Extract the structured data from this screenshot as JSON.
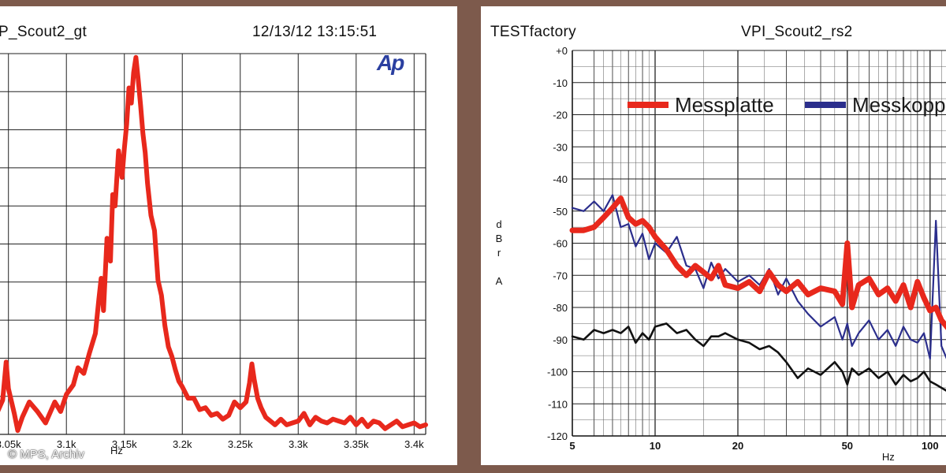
{
  "left": {
    "title": "P_Scout2_gt",
    "timestamp": "12/13/12 13:15:51",
    "logo": "Ap",
    "xlabel": "Hz"
  },
  "right": {
    "brand": "TESTfactory",
    "title": "VPI_Scout2_rs2",
    "ylabel_letters": [
      "d",
      "B",
      "r",
      "",
      "A"
    ],
    "xlabel": "Hz"
  },
  "credit": "© MPS, Archiv",
  "colors": {
    "red": "#e8281c",
    "blue": "#2b2e8c",
    "black": "#111111",
    "frame": "#7d5a4c"
  },
  "chart_data": [
    {
      "type": "line",
      "title": "P_Scout2_gt",
      "xlabel": "Hz",
      "ylabel": "",
      "xlim": [
        3040,
        3410
      ],
      "ylim": [
        0,
        10
      ],
      "x_ticks": [
        3050,
        3100,
        3150,
        3200,
        3250,
        3300,
        3350,
        3400
      ],
      "x_tick_labels": [
        "3.05k",
        "3.1k",
        "3.15k",
        "3.2k",
        "3.25k",
        "3.3k",
        "3.35k",
        "3.4k"
      ],
      "grid": true,
      "series": [
        {
          "color": "#e8281c",
          "x": [
            3040,
            3045,
            3048,
            3050,
            3055,
            3058,
            3062,
            3068,
            3075,
            3082,
            3090,
            3095,
            3100,
            3106,
            3110,
            3115,
            3120,
            3125,
            3128,
            3130,
            3132,
            3135,
            3138,
            3140,
            3142,
            3145,
            3148,
            3150,
            3152,
            3154,
            3156,
            3158,
            3160,
            3162,
            3164,
            3166,
            3168,
            3170,
            3173,
            3176,
            3179,
            3182,
            3185,
            3188,
            3191,
            3194,
            3197,
            3200,
            3205,
            3210,
            3215,
            3220,
            3225,
            3230,
            3235,
            3240,
            3245,
            3250,
            3255,
            3258,
            3260,
            3262,
            3265,
            3268,
            3272,
            3276,
            3280,
            3285,
            3290,
            3295,
            3300,
            3305,
            3310,
            3315,
            3320,
            3325,
            3330,
            3335,
            3340,
            3345,
            3350,
            3355,
            3360,
            3365,
            3370,
            3375,
            3380,
            3385,
            3390,
            3395,
            3400,
            3405,
            3410
          ],
          "y": [
            0.55,
            0.9,
            1.9,
            1.2,
            0.55,
            0.1,
            0.45,
            0.85,
            0.6,
            0.3,
            0.85,
            0.6,
            1.05,
            1.3,
            1.75,
            1.6,
            2.15,
            2.65,
            3.55,
            4.1,
            3.25,
            5.15,
            4.55,
            6.3,
            6.0,
            7.45,
            6.75,
            7.5,
            8.15,
            9.1,
            8.7,
            9.5,
            9.9,
            9.3,
            8.65,
            7.9,
            7.4,
            6.6,
            5.75,
            5.35,
            4.05,
            3.65,
            2.85,
            2.3,
            2.05,
            1.7,
            1.4,
            1.25,
            0.95,
            0.95,
            0.65,
            0.7,
            0.5,
            0.55,
            0.4,
            0.5,
            0.85,
            0.7,
            0.85,
            1.35,
            1.85,
            1.45,
            0.95,
            0.7,
            0.45,
            0.35,
            0.25,
            0.4,
            0.25,
            0.3,
            0.35,
            0.55,
            0.25,
            0.45,
            0.35,
            0.3,
            0.4,
            0.35,
            0.3,
            0.45,
            0.25,
            0.4,
            0.2,
            0.35,
            0.3,
            0.15,
            0.25,
            0.35,
            0.2,
            0.25,
            0.3,
            0.2,
            0.25
          ]
        }
      ]
    },
    {
      "type": "line",
      "title": "VPI_Scout2_rs2",
      "xlabel": "Hz",
      "ylabel": "dBr A",
      "x_scale": "log",
      "xlim": [
        5,
        120
      ],
      "ylim": [
        -120,
        0
      ],
      "x_ticks": [
        5,
        10,
        20,
        50,
        100
      ],
      "x_tick_labels": [
        "5",
        "10",
        "20",
        "50",
        "100"
      ],
      "y_ticks": [
        0,
        -10,
        -20,
        -30,
        -40,
        -50,
        -60,
        -70,
        -80,
        -90,
        -100,
        -110,
        -120
      ],
      "y_tick_labels": [
        "+0",
        "-10",
        "-20",
        "-30",
        "-40",
        "-50",
        "-60",
        "-70",
        "-80",
        "-90",
        "-100",
        "-110",
        "-120"
      ],
      "grid": true,
      "legend": "top",
      "series": [
        {
          "name": "Messplatte",
          "color": "#e8281c",
          "x": [
            5,
            5.5,
            6,
            6.5,
            7,
            7.5,
            8,
            8.5,
            9,
            9.5,
            10,
            11,
            12,
            13,
            14,
            15,
            16,
            17,
            18,
            20,
            22,
            24,
            26,
            28,
            30,
            33,
            36,
            40,
            45,
            48,
            50,
            52,
            55,
            60,
            65,
            70,
            75,
            80,
            85,
            90,
            95,
            100,
            105,
            110,
            115,
            120
          ],
          "y": [
            -56,
            -56,
            -55,
            -52,
            -49,
            -46,
            -52,
            -54,
            -53,
            -55,
            -58,
            -62,
            -67,
            -70,
            -67,
            -69,
            -71,
            -67,
            -73,
            -74,
            -72,
            -75,
            -69,
            -73,
            -75,
            -72,
            -76,
            -74,
            -75,
            -79,
            -60,
            -80,
            -73,
            -71,
            -76,
            -74,
            -78,
            -73,
            -80,
            -72,
            -77,
            -81,
            -80,
            -84,
            -86,
            -88
          ]
        },
        {
          "name": "Messkoppler",
          "color": "#2b2e8c",
          "x": [
            5,
            5.5,
            6,
            6.5,
            7,
            7.5,
            8,
            8.5,
            9,
            9.5,
            10,
            11,
            12,
            13,
            14,
            15,
            16,
            17,
            18,
            20,
            22,
            24,
            26,
            28,
            30,
            33,
            36,
            40,
            45,
            48,
            50,
            52,
            55,
            60,
            65,
            70,
            75,
            80,
            85,
            90,
            95,
            100,
            105,
            110,
            115,
            120
          ],
          "y": [
            -49,
            -50,
            -47,
            -50,
            -45,
            -55,
            -54,
            -61,
            -57,
            -65,
            -60,
            -63,
            -58,
            -67,
            -68,
            -74,
            -66,
            -71,
            -68,
            -72,
            -70,
            -73,
            -68,
            -76,
            -71,
            -78,
            -82,
            -86,
            -83,
            -90,
            -85,
            -92,
            -88,
            -84,
            -90,
            -87,
            -92,
            -86,
            -90,
            -91,
            -88,
            -96,
            -53,
            -92,
            -96,
            -90
          ]
        },
        {
          "name": "",
          "color": "#111111",
          "x": [
            5,
            5.5,
            6,
            6.5,
            7,
            7.5,
            8,
            8.5,
            9,
            9.5,
            10,
            11,
            12,
            13,
            14,
            15,
            16,
            17,
            18,
            20,
            22,
            24,
            26,
            28,
            30,
            33,
            36,
            40,
            45,
            48,
            50,
            52,
            55,
            60,
            65,
            70,
            75,
            80,
            85,
            90,
            95,
            100,
            105,
            110,
            115,
            120
          ],
          "y": [
            -89,
            -90,
            -87,
            -88,
            -87,
            -88,
            -86,
            -91,
            -88,
            -90,
            -86,
            -85,
            -88,
            -87,
            -90,
            -92,
            -89,
            -89,
            -88,
            -90,
            -91,
            -93,
            -92,
            -94,
            -97,
            -102,
            -99,
            -101,
            -97,
            -100,
            -104,
            -99,
            -101,
            -99,
            -102,
            -100,
            -104,
            -101,
            -103,
            -102,
            -100,
            -103,
            -104,
            -105,
            -106,
            -104
          ]
        }
      ]
    }
  ]
}
